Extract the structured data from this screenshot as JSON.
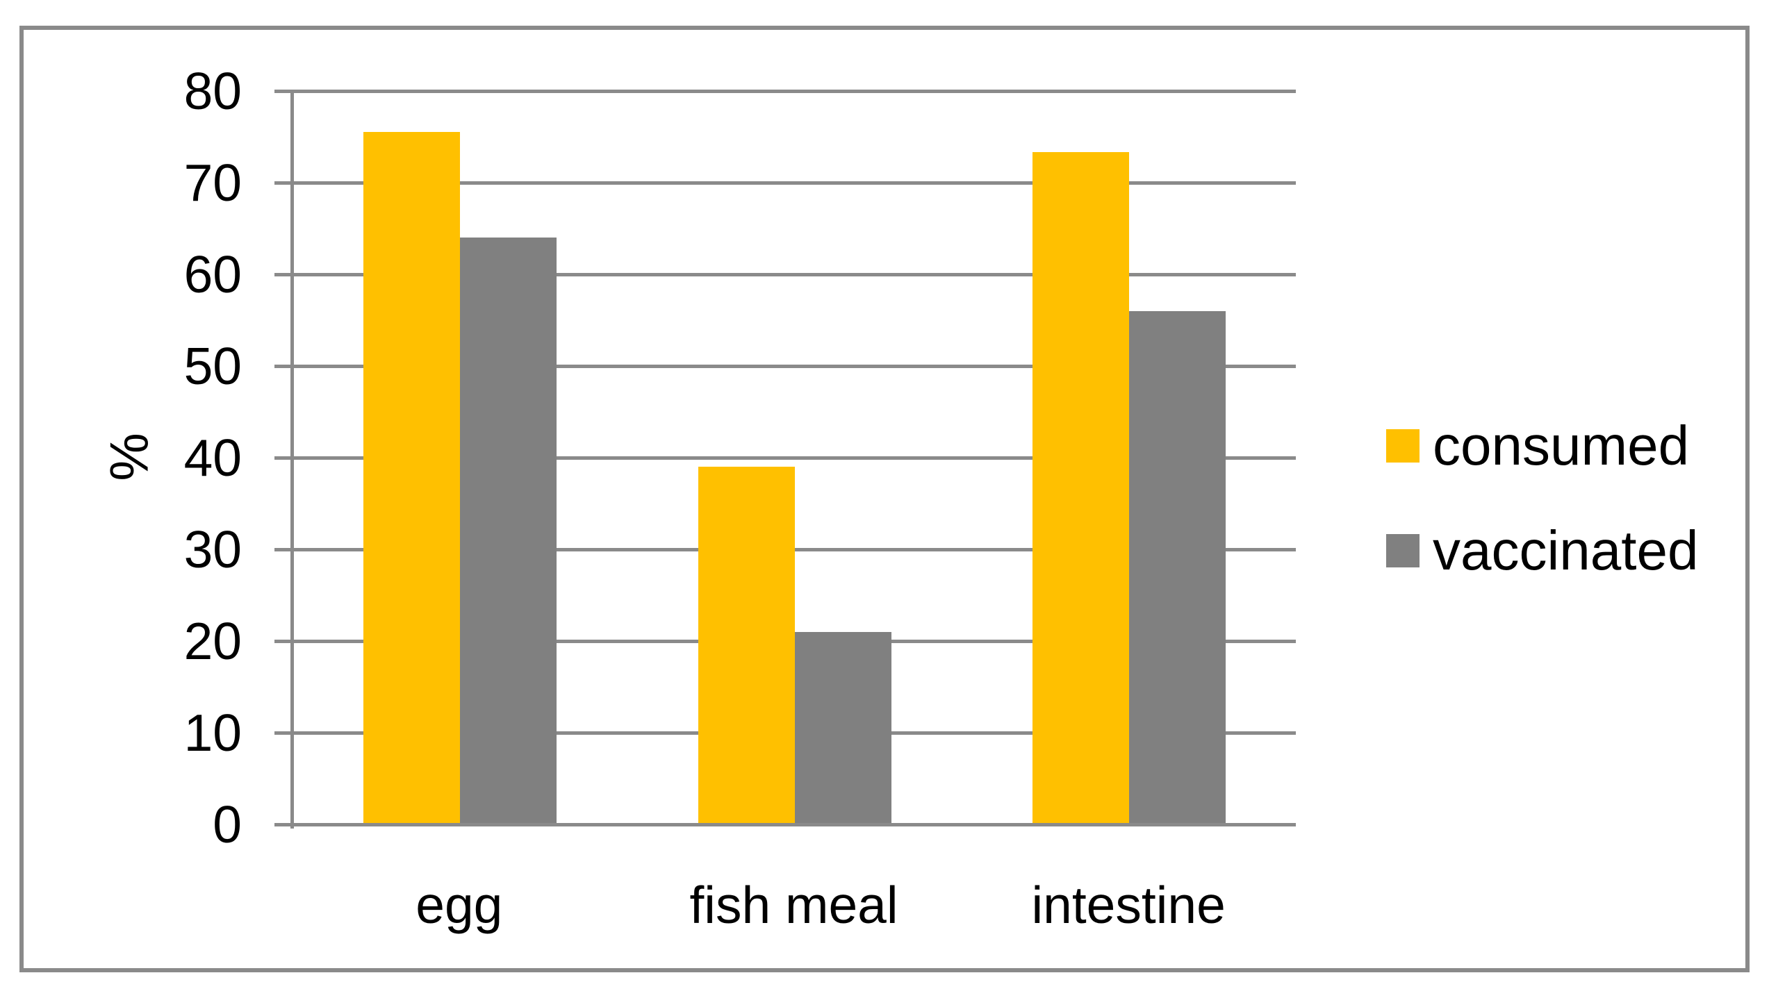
{
  "chart_data": {
    "type": "bar",
    "title": "",
    "xlabel": "",
    "ylabel": "%",
    "categories": [
      "egg",
      "fish meal",
      "intestine"
    ],
    "series": [
      {
        "name": "consumed",
        "color": "#FFC000",
        "values": [
          75.5,
          39,
          73.3
        ]
      },
      {
        "name": "vaccinated",
        "color": "#808080",
        "values": [
          64,
          21,
          56
        ]
      }
    ],
    "ylim": [
      0,
      80
    ],
    "yticks": [
      0,
      10,
      20,
      30,
      40,
      50,
      60,
      70,
      80
    ],
    "grid": true,
    "legend_position": "right"
  },
  "colors": {
    "axis_and_grid": "#8A8A8A",
    "frame_border": "#8A8A8A",
    "background": "#FFFFFF",
    "text": "#000000"
  }
}
